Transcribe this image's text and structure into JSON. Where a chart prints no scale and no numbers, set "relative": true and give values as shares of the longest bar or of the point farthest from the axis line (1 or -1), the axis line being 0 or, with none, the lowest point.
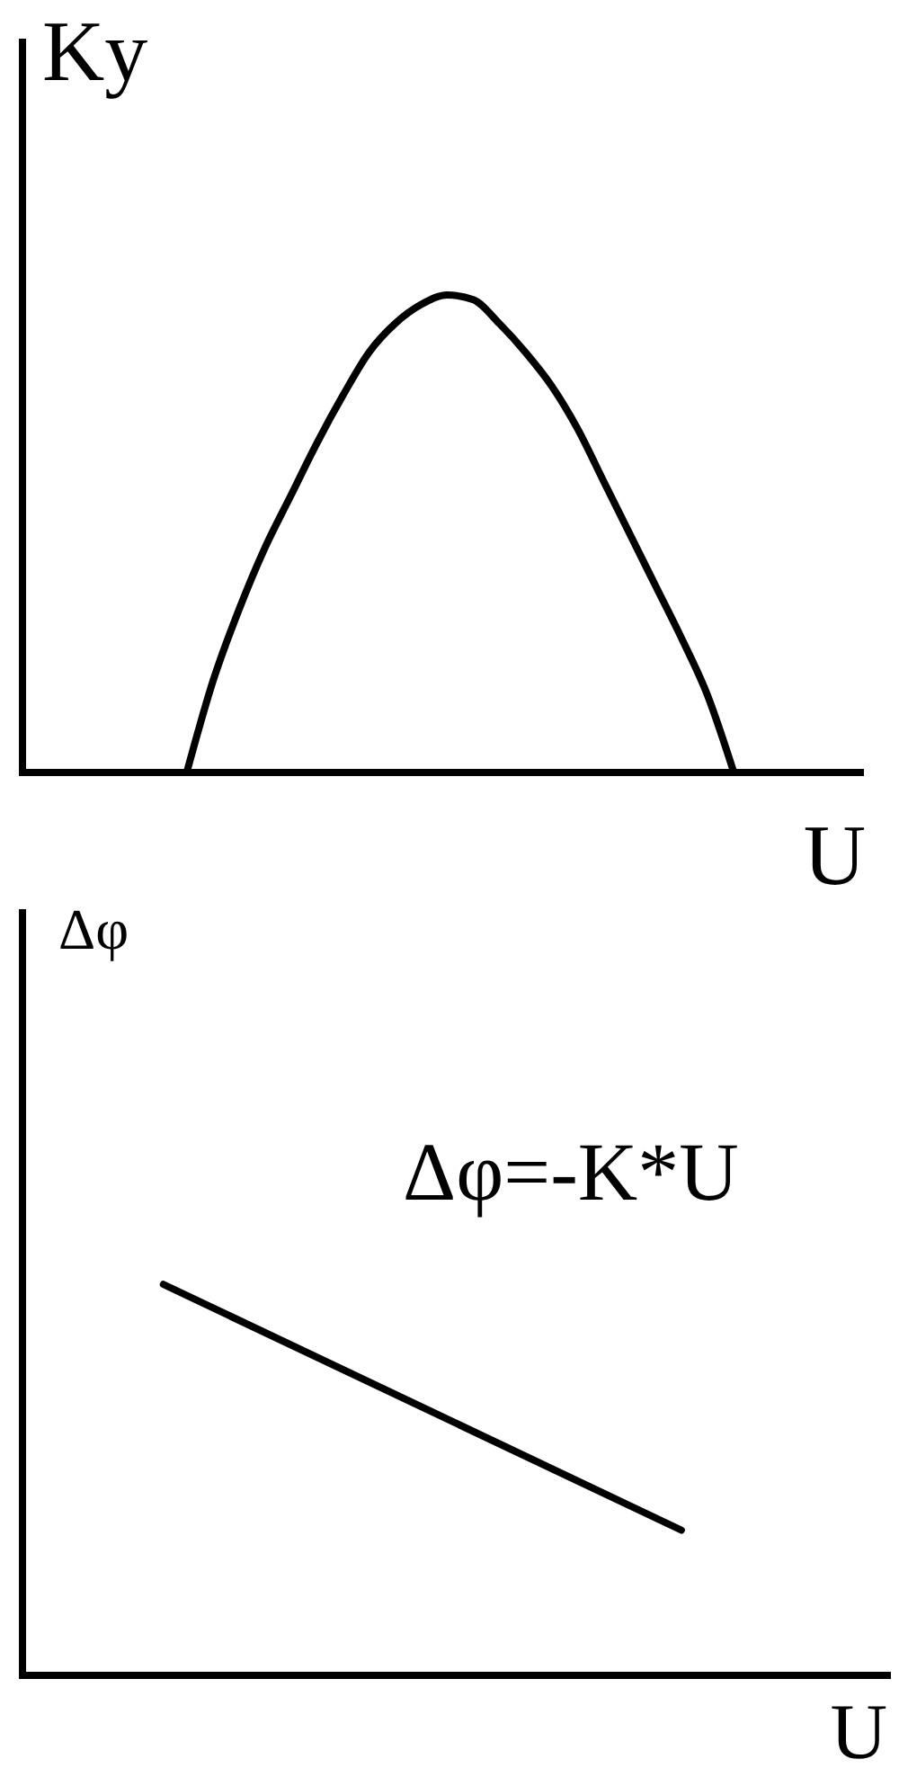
{
  "chart_data": [
    {
      "type": "line",
      "ylabel": "Ky",
      "xlabel": "U",
      "relative": true,
      "line_style": "solid",
      "categories": [
        null,
        null,
        null,
        null,
        null,
        null,
        null,
        null,
        null,
        null,
        null,
        null,
        null,
        null,
        null,
        null,
        null,
        null,
        null,
        null,
        null,
        null
      ],
      "series": [
        {
          "color": "#000000",
          "values": [
            0,
            0.19,
            0.34,
            0.47,
            0.58,
            0.69,
            0.79,
            0.88,
            0.94,
            0.98,
            1,
            0.99,
            0.94,
            0.88,
            0.81,
            0.72,
            0.61,
            0.5,
            0.39,
            0.28,
            0.16,
            0
          ]
        }
      ]
    },
    {
      "type": "line",
      "ylabel": "Δφ",
      "xlabel": "U",
      "relative": true,
      "line_style": "solid",
      "categories": [
        null,
        null
      ],
      "series": [
        {
          "color": "#000000",
          "values": [
            1,
            0.37
          ]
        }
      ],
      "annotations": [
        "Δφ=-K*U"
      ]
    }
  ]
}
